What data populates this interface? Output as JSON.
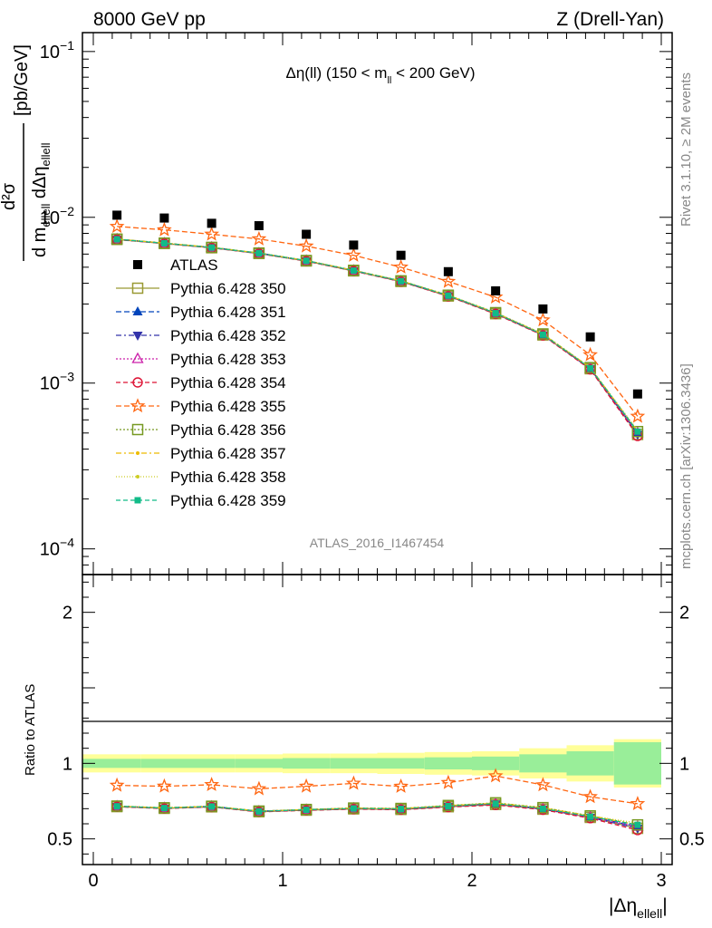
{
  "header": {
    "left": "8000 GeV pp",
    "right": "Z (Drell-Yan)"
  },
  "title_parts": {
    "prefix": "Δη(ll) (150 < m",
    "sub": "ll",
    "suffix": " < 200 GeV)"
  },
  "analysis_tag": "ATLAS_2016_I1467454",
  "side_texts": {
    "rivet": "Rivet 3.1.10, ≥ 2M events",
    "mcplots": "mcplots.cern.ch [arXiv:1306.3436]"
  },
  "axis_labels": {
    "ratio": "Ratio to ATLAS"
  },
  "y_label_parts": {
    "num": "d²σ",
    "den_d1": "d m",
    "den_sub1": "ellell",
    "den_d2": " dΔη",
    "den_sub2": "ellell",
    "unit": "[pb/GeV]"
  },
  "x_label_parts": {
    "main": "|Δη",
    "sub": "ellell",
    "close": "|"
  },
  "main_ticks": {
    "labels": [
      {
        "base": "10",
        "exp": "−1",
        "value": 0.1
      },
      {
        "base": "10",
        "exp": "−2",
        "value": 0.01
      },
      {
        "base": "10",
        "exp": "−3",
        "value": 0.001
      },
      {
        "base": "10",
        "exp": "−4",
        "value": 0.0001
      }
    ]
  },
  "ratio_ticks": {
    "labels": [
      {
        "text": "2",
        "value": 2
      },
      {
        "text": "1",
        "value": 1
      },
      {
        "text": "0.5",
        "value": 0.5
      }
    ]
  },
  "x_ticks": {
    "labels": [
      {
        "text": "0",
        "value": 0
      },
      {
        "text": "1",
        "value": 1
      },
      {
        "text": "2",
        "value": 2
      },
      {
        "text": "3",
        "value": 3
      }
    ]
  },
  "chart_data": {
    "type": "scatter",
    "xlim": [
      0,
      3
    ],
    "ylim": [
      7e-05,
      0.13
    ],
    "ylog": true,
    "ratio_ylim": [
      0.33,
      2.25
    ],
    "legend_position": "left-middle",
    "x": [
      0.125,
      0.375,
      0.625,
      0.875,
      1.125,
      1.375,
      1.625,
      1.875,
      2.125,
      2.375,
      2.625,
      2.875
    ],
    "atlas": {
      "name": "ATLAS",
      "color": "#000000",
      "values": [
        0.0103,
        0.0099,
        0.0092,
        0.0089,
        0.0079,
        0.0068,
        0.0059,
        0.0047,
        0.0036,
        0.0028,
        0.0019,
        0.00086
      ]
    },
    "band_inner": [
      0.03,
      0.03,
      0.03,
      0.03,
      0.035,
      0.035,
      0.035,
      0.04,
      0.045,
      0.06,
      0.08,
      0.14
    ],
    "band_outer": [
      0.06,
      0.06,
      0.06,
      0.06,
      0.065,
      0.065,
      0.07,
      0.075,
      0.08,
      0.1,
      0.12,
      0.16
    ],
    "series": [
      {
        "name": "Pythia 6.428 350",
        "color": "#999933",
        "dash": "",
        "marker": "square-open",
        "values": [
          0.00735,
          0.00695,
          0.00655,
          0.00605,
          0.00545,
          0.00475,
          0.0041,
          0.00335,
          0.00262,
          0.00195,
          0.00122,
          0.00049
        ]
      },
      {
        "name": "Pythia 6.428 351",
        "color": "#0044bb",
        "dash": "6,3",
        "marker": "triangle-up",
        "values": [
          0.00738,
          0.00698,
          0.00658,
          0.00608,
          0.00548,
          0.00478,
          0.00412,
          0.00337,
          0.00264,
          0.00196,
          0.00123,
          0.0005
        ]
      },
      {
        "name": "Pythia 6.428 352",
        "color": "#3333aa",
        "dash": "6,3,2,3",
        "marker": "triangle-down",
        "values": [
          0.00736,
          0.00696,
          0.00656,
          0.00606,
          0.00546,
          0.00476,
          0.00411,
          0.00336,
          0.00263,
          0.00195,
          0.00122,
          0.00049
        ]
      },
      {
        "name": "Pythia 6.428 353",
        "color": "#cc22aa",
        "dash": "2,2",
        "marker": "triangle-open",
        "values": [
          0.00737,
          0.00697,
          0.00657,
          0.00607,
          0.00547,
          0.00477,
          0.00411,
          0.00336,
          0.00263,
          0.00195,
          0.00122,
          0.0005
        ]
      },
      {
        "name": "Pythia 6.428 354",
        "color": "#dd1133",
        "dash": "5,3",
        "marker": "circle-open",
        "values": [
          0.00734,
          0.00694,
          0.00654,
          0.00604,
          0.00544,
          0.00474,
          0.00409,
          0.00334,
          0.00261,
          0.00194,
          0.00121,
          0.00048
        ]
      },
      {
        "name": "Pythia 6.428 355",
        "color": "#ff6611",
        "dash": "6,3",
        "marker": "star-open",
        "values": [
          0.0088,
          0.0084,
          0.0079,
          0.0074,
          0.0067,
          0.0059,
          0.005,
          0.0041,
          0.0033,
          0.0024,
          0.00148,
          0.00063
        ]
      },
      {
        "name": "Pythia 6.428 356",
        "color": "#779922",
        "dash": "2,2",
        "marker": "square-open",
        "values": [
          0.00739,
          0.00699,
          0.00659,
          0.00609,
          0.00549,
          0.00479,
          0.00414,
          0.00339,
          0.00266,
          0.00198,
          0.00124,
          0.00051
        ]
      },
      {
        "name": "Pythia 6.428 357",
        "color": "#eebb00",
        "dash": "6,3,2,3",
        "marker": "dot",
        "values": [
          0.00738,
          0.00698,
          0.00658,
          0.00608,
          0.00548,
          0.00478,
          0.00413,
          0.00338,
          0.00265,
          0.00197,
          0.00124,
          0.00051
        ]
      },
      {
        "name": "Pythia 6.428 358",
        "color": "#cccc22",
        "dash": "1,2",
        "marker": "dot",
        "values": [
          0.00739,
          0.00699,
          0.00659,
          0.00609,
          0.00549,
          0.00479,
          0.00414,
          0.00339,
          0.00266,
          0.00198,
          0.00124,
          0.00052
        ]
      },
      {
        "name": "Pythia 6.428 359",
        "color": "#11bb88",
        "dash": "5,3",
        "marker": "square-filled",
        "values": [
          0.00737,
          0.00697,
          0.00657,
          0.00607,
          0.00547,
          0.00477,
          0.00412,
          0.00337,
          0.00264,
          0.00196,
          0.00123,
          0.00051
        ]
      }
    ]
  }
}
